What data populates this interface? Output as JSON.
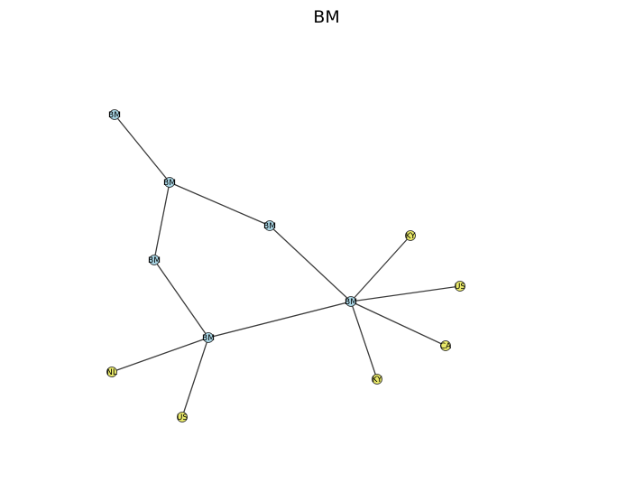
{
  "title": "BM",
  "colors": {
    "bm": "#a9d6e5",
    "other": "#eaea6a"
  },
  "nodes": [
    {
      "id": "bm1",
      "label": "BM",
      "group": "bm"
    },
    {
      "id": "bm2",
      "label": "BM",
      "group": "bm"
    },
    {
      "id": "bm3",
      "label": "BM",
      "group": "bm"
    },
    {
      "id": "bm4",
      "label": "BM",
      "group": "bm"
    },
    {
      "id": "bm5",
      "label": "BM",
      "group": "bm"
    },
    {
      "id": "bm6",
      "label": "BM",
      "group": "bm"
    },
    {
      "id": "ky1",
      "label": "KY",
      "group": "other"
    },
    {
      "id": "us1",
      "label": "US",
      "group": "other"
    },
    {
      "id": "ca1",
      "label": "CA",
      "group": "other"
    },
    {
      "id": "ky2",
      "label": "KY",
      "group": "other"
    },
    {
      "id": "nl1",
      "label": "NL",
      "group": "other"
    },
    {
      "id": "us2",
      "label": "US",
      "group": "other"
    }
  ],
  "edges": [
    [
      "bm1",
      "bm2"
    ],
    [
      "bm2",
      "bm3"
    ],
    [
      "bm2",
      "bm4"
    ],
    [
      "bm3",
      "bm6"
    ],
    [
      "bm4",
      "bm5"
    ],
    [
      "bm5",
      "bm6"
    ],
    [
      "bm6",
      "ky1"
    ],
    [
      "bm6",
      "us1"
    ],
    [
      "bm6",
      "ca1"
    ],
    [
      "bm6",
      "ky2"
    ],
    [
      "bm5",
      "nl1"
    ],
    [
      "bm5",
      "us2"
    ]
  ]
}
